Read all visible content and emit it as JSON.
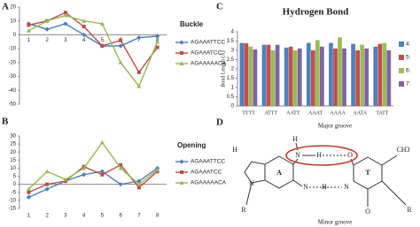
{
  "chart_data": [
    {
      "type": "line",
      "panel_label": "A",
      "title": "Buckle",
      "categories": [
        "1",
        "2",
        "3",
        "4",
        "5",
        "6",
        "7",
        "8"
      ],
      "ylim": [
        -50,
        20
      ],
      "yticks": [
        -50,
        -40,
        -30,
        -20,
        -10,
        0,
        10,
        20
      ],
      "legend": "right",
      "series": [
        {
          "name": "AGAAATTCC",
          "color": "#4a7ebb",
          "marker": "diamond",
          "values": [
            8,
            4,
            8,
            0,
            -8,
            -8,
            -2,
            -1
          ]
        },
        {
          "name": "AGAAATCC",
          "color": "#be4b48",
          "marker": "square",
          "values": [
            7,
            10,
            16,
            6,
            -8,
            -4,
            -27,
            -9
          ]
        },
        {
          "name": "AGAAAAACA",
          "color": "#98b954",
          "marker": "triangle",
          "values": [
            3,
            10,
            14,
            10,
            8,
            -20,
            -37,
            -5
          ]
        }
      ]
    },
    {
      "type": "line",
      "panel_label": "B",
      "title": "Opening",
      "categories": [
        "1",
        "2",
        "3",
        "4",
        "5",
        "6",
        "7",
        "8"
      ],
      "ylim": [
        -15,
        30
      ],
      "yticks": [
        -15,
        -10,
        -5,
        0,
        5,
        10,
        15,
        20,
        25,
        30
      ],
      "legend": "right",
      "series": [
        {
          "name": "AGAAATTCC",
          "color": "#4a7ebb",
          "marker": "diamond",
          "values": [
            -8,
            -3,
            2,
            6,
            8,
            0,
            2,
            10
          ]
        },
        {
          "name": "AGAAATCC",
          "color": "#be4b48",
          "marker": "square",
          "values": [
            -5,
            0,
            2,
            11,
            6,
            12,
            -2,
            8
          ]
        },
        {
          "name": "AGAAAAACA",
          "color": "#98b954",
          "marker": "triangle",
          "values": [
            -3,
            8,
            3,
            10,
            26,
            10,
            0,
            9
          ]
        }
      ]
    },
    {
      "type": "bar",
      "panel_label": "C",
      "title": "Hydrogen Bond",
      "y_label": "Bond Length (Å)",
      "categories": [
        "TTTT",
        "ATTT",
        "AATT",
        "AAAT",
        "AAAA",
        "AATA",
        "TATT"
      ],
      "ylim": [
        0,
        4
      ],
      "yticks": [
        0,
        0.5,
        1,
        1.5,
        2,
        2.5,
        3,
        3.5,
        4
      ],
      "legend": "right",
      "series": [
        {
          "name": "4:",
          "color": "#4f81bd",
          "values": [
            3.4,
            3.3,
            3.15,
            3.4,
            3.4,
            3.35,
            3.2
          ]
        },
        {
          "name": "5:",
          "color": "#c0504d",
          "values": [
            3.38,
            3.3,
            3.2,
            3.0,
            3.1,
            3.0,
            3.35
          ]
        },
        {
          "name": "6:",
          "color": "#9bbb59",
          "values": [
            3.2,
            3.0,
            3.0,
            3.55,
            3.7,
            3.3,
            3.4
          ]
        },
        {
          "name": "7:",
          "color": "#8064a2",
          "values": [
            3.05,
            3.3,
            3.1,
            3.2,
            3.1,
            3.1,
            3.0
          ]
        }
      ]
    }
  ],
  "diagram": {
    "panel_label": "D",
    "labels": [
      "Major groove",
      "H",
      "N",
      "H",
      "O",
      "CH3",
      "A",
      "T",
      "N",
      "H",
      "N",
      "N",
      "R",
      "H",
      "O",
      "R",
      "Minor groove"
    ]
  }
}
